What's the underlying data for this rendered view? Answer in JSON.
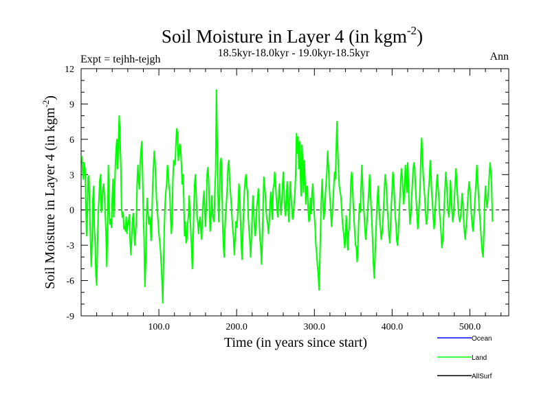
{
  "chart_data": {
    "type": "line",
    "title": "Soil Moisture in Layer 4 (in kgm",
    "title_sup": "-2",
    "title_close": ")",
    "subtitle": "18.5kyr-18.0kyr - 19.0kyr-18.5kyr",
    "expt_label": "Expt = tejhh-tejgh",
    "season_label": "Ann",
    "xlabel": "Time (in years since start)",
    "ylabel": "Soil Moisture in Layer 4 (in kgm",
    "ylabel_sup": "-2",
    "ylabel_close": ")",
    "xlim": [
      0,
      550
    ],
    "ylim": [
      -9,
      12
    ],
    "x_ticks": [
      100,
      200,
      300,
      400,
      500
    ],
    "x_tick_labels": [
      "100.0",
      "200.0",
      "300.0",
      "400.0",
      "500.0"
    ],
    "y_ticks": [
      -9,
      -6,
      -3,
      0,
      3,
      6,
      9,
      12
    ],
    "y_tick_labels": [
      "-9",
      "-6",
      "-3",
      "0",
      "3",
      "6",
      "9",
      "12"
    ],
    "zero_line": true,
    "legend": [
      {
        "name": "Ocean",
        "color": "#0000ff"
      },
      {
        "name": "Land",
        "color": "#00ff00"
      },
      {
        "name": "AllSurf",
        "color": "#000000"
      }
    ],
    "series": [
      {
        "name": "Land",
        "color": "#00ff00",
        "x_start": 1,
        "x_step": 1,
        "values": [
          4.6,
          3.2,
          2.6,
          4.0,
          3.5,
          1.0,
          -2.2,
          -0.5,
          2.8,
          2.9,
          0.2,
          -2.6,
          -4.8,
          -3.0,
          0.8,
          2.0,
          -1.5,
          -2.8,
          -5.6,
          -6.4,
          -3.2,
          -0.2,
          1.0,
          2.5,
          3.0,
          -0.2,
          0.4,
          1.8,
          2.2,
          1.2,
          -0.4,
          -2.0,
          -4.8,
          -1.2,
          3.8,
          0.2,
          -1.2,
          -0.8,
          -1.5,
          1.0,
          2.6,
          -0.6,
          1.5,
          3.8,
          5.2,
          6.0,
          3.5,
          5.8,
          8.0,
          6.2,
          4.0,
          0.2,
          -0.6,
          -0.2,
          -1.6,
          -1.4,
          -1.8,
          -0.6,
          -2.0,
          -1.2,
          -1.0,
          -0.4,
          -2.6,
          -3.8,
          -2.4,
          -1.0,
          -0.3,
          -1.4,
          -3.0,
          -2.0,
          -1.0,
          2.2,
          3.8,
          2.4,
          1.8,
          4.0,
          5.0,
          5.8,
          3.4,
          -0.5,
          -2.5,
          -6.5,
          -4.5,
          -1.0,
          1.0,
          -0.2,
          -1.2,
          -0.6,
          -1.2,
          -2.6,
          -0.8,
          2.0,
          3.6,
          5.0,
          4.2,
          2.6,
          0.8,
          0.0,
          -1.0,
          -2.0,
          -2.6,
          -3.4,
          -4.6,
          -6.0,
          -7.9,
          -4.5,
          -1.5,
          0.5,
          1.6,
          2.2,
          3.8,
          3.0,
          2.0,
          1.5,
          -0.5,
          -2.0,
          -1.0,
          2.5,
          4.2,
          3.8,
          4.0,
          5.8,
          6.9,
          6.5,
          4.2,
          5.0,
          5.6,
          5.2,
          3.8,
          2.2,
          3.0,
          1.0,
          -2.2,
          -1.0,
          -2.8,
          -2.5,
          -1.2,
          -0.5,
          1.2,
          -0.5,
          -1.8,
          -3.2,
          -5.0,
          -2.5,
          0.2,
          2.2,
          3.0,
          1.2,
          -0.5,
          -1.0,
          -2.0,
          -1.0,
          -0.6,
          -1.8,
          -2.5,
          -0.5,
          0.8,
          1.6,
          -0.2,
          -1.4,
          0.5,
          3.0,
          3.6,
          2.6,
          0.2,
          -1.8,
          -0.6,
          1.2,
          -0.3,
          -0.8,
          -1.0,
          1.6,
          3.2,
          10.2,
          6.0,
          1.5,
          -1.0,
          1.0,
          4.0,
          4.4,
          2.8,
          -1.2,
          -3.0,
          -4.0,
          -1.6,
          -0.3,
          0.8,
          2.0,
          3.8,
          4.2,
          2.6,
          1.6,
          0.6,
          -0.6,
          -1.6,
          -2.4,
          -3.8,
          -2.5,
          -1.0,
          -1.5,
          -0.8,
          0.4,
          2.2,
          1.2,
          -0.8,
          -3.0,
          -4.2,
          -2.0,
          0.0,
          1.6,
          2.5,
          3.0,
          2.0,
          1.6,
          -0.6,
          -1.8,
          -2.6,
          -4.0,
          -2.4,
          -0.5,
          1.2,
          -0.2,
          -1.5,
          -2.2,
          -1.0,
          0.3,
          1.0,
          1.8,
          -0.8,
          -2.5,
          -3.0,
          -4.6,
          -2.6,
          0.0,
          2.8,
          2.0,
          1.2,
          -0.2,
          -0.8,
          -1.2,
          -2.0,
          -1.0,
          0.5,
          1.5,
          0.0,
          -0.8,
          1.8,
          2.2,
          3.2,
          2.4,
          1.0,
          0.0,
          -0.6,
          1.0,
          2.2,
          0.8,
          -0.4,
          0.6,
          2.0,
          3.2,
          1.6,
          0.0,
          -0.5,
          1.2,
          2.4,
          1.0,
          -1.0,
          0.5,
          2.4,
          1.2,
          0.2,
          -0.8,
          -0.4,
          0.6,
          1.5,
          3.2,
          6.5,
          4.8,
          6.2,
          3.5,
          5.8,
          3.0,
          1.2,
          5.5,
          4.0,
          1.5,
          4.2,
          2.5,
          0.5,
          1.8,
          2.0,
          0.0,
          -1.0,
          -0.6,
          1.0,
          -0.3,
          1.6,
          2.2,
          0.6,
          -0.5,
          -1.5,
          -3.0,
          -3.8,
          -4.8,
          -5.4,
          -6.8,
          -4.4,
          -1.5,
          1.2,
          2.6,
          0.8,
          -0.8,
          -0.2,
          1.0,
          2.2,
          3.2,
          5.0,
          3.8,
          2.2,
          1.0,
          0.0,
          -1.4,
          -0.5,
          0.8,
          2.0,
          3.2,
          2.6,
          4.8,
          7.5,
          5.2,
          3.6,
          2.0,
          1.6,
          1.2,
          0.2,
          -1.0,
          -1.6,
          -2.2,
          -3.2,
          -2.5,
          -0.5,
          -1.6,
          -3.4,
          -2.0,
          -1.4,
          0.2,
          2.5,
          3.2,
          2.2,
          0.5,
          -0.8,
          -2.0,
          -3.0,
          -3.2,
          -4.4,
          -3.2,
          -1.0,
          0.5,
          -0.2,
          1.8,
          3.8,
          2.2,
          0.6,
          -0.4,
          -1.6,
          -2.5,
          -1.8,
          -0.6,
          0.5,
          1.5,
          3.0,
          1.8,
          0.2,
          -1.2,
          -2.8,
          -4.6,
          -5.8,
          -4.0,
          -2.2,
          -0.5,
          1.0,
          2.0,
          0.5,
          -0.8,
          -1.5,
          -2.5,
          -2.0,
          -1.0,
          0.2,
          1.6,
          3.0,
          2.5,
          1.4,
          0.0,
          -1.0,
          -2.2,
          -2.8,
          -1.2,
          0.4,
          1.8,
          3.2,
          2.6,
          1.0,
          -0.6,
          -1.2,
          -2.6,
          -3.0,
          -2.0,
          -0.4,
          1.0,
          2.4,
          3.5,
          2.8,
          1.6,
          0.5,
          1.8,
          3.8,
          2.6,
          1.5,
          4.0,
          2.2,
          0.2,
          -1.2,
          -0.5,
          1.0,
          2.2,
          3.4,
          4.0,
          3.6,
          2.0,
          0.8,
          -0.4,
          -1.6,
          -0.8,
          0.6,
          2.0,
          4.8,
          6.1,
          4.5,
          3.0,
          2.0,
          1.0,
          -0.2,
          -1.2,
          -0.8,
          0.6,
          1.8,
          2.6,
          4.2,
          3.0,
          1.4,
          0.4,
          -0.8,
          -1.6,
          -0.6,
          0.8,
          2.0,
          3.0,
          2.0,
          1.2,
          -0.2,
          -1.0,
          -2.0,
          -3.2,
          -2.6,
          -1.2,
          0.4,
          1.8,
          3.2,
          2.4,
          1.0,
          -0.2,
          -0.6,
          0.6,
          2.5,
          1.2,
          0.0,
          -1.0,
          -0.4,
          0.8,
          2.2,
          3.5,
          2.6,
          1.2,
          0.2,
          -0.6,
          -1.0,
          -0.6,
          0.2,
          1.4,
          0.6,
          -0.8,
          -1.8,
          -2.5,
          -1.6,
          -0.8,
          0.6,
          1.6,
          2.4,
          1.8,
          0.6,
          -0.4,
          -1.2,
          -1.8,
          -1.0,
          0.2,
          1.4,
          2.4,
          3.8,
          2.6,
          1.4,
          0.2,
          -0.8,
          -1.8,
          -2.8,
          -3.6,
          -4.0,
          -2.2,
          0.5,
          2.0,
          1.0,
          0.2,
          0.8,
          1.8,
          3.0,
          4.0,
          3.2,
          2.0,
          -1.0
        ]
      }
    ]
  }
}
